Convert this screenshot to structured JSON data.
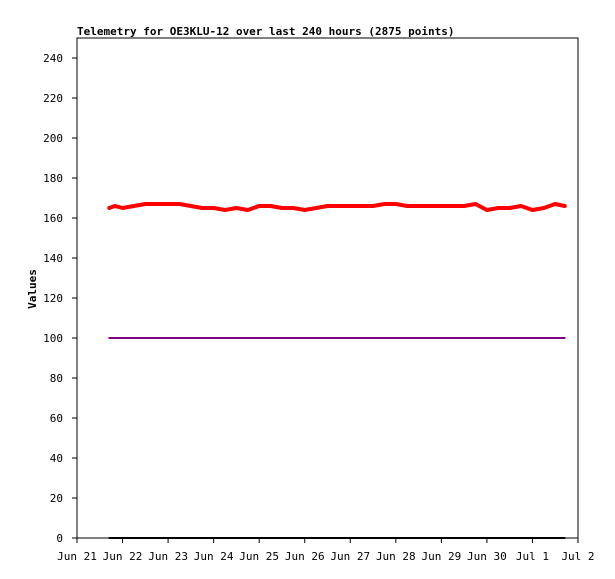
{
  "chart_data": {
    "type": "line",
    "title": "Telemetry for OE3KLU-12 over last 240 hours (2875 points)",
    "xlabel": "",
    "ylabel": "Values",
    "ylim": [
      0,
      250
    ],
    "xlim": [
      "Jun 21",
      "Jul 2"
    ],
    "y_ticks": [
      0,
      20,
      40,
      60,
      80,
      100,
      120,
      140,
      160,
      180,
      200,
      220,
      240
    ],
    "x_tick_labels": [
      "Jun 21",
      "Jun 22",
      "Jun 23",
      "Jun 24",
      "Jun 25",
      "Jun 26",
      "Jun 27",
      "Jun 28",
      "Jun 29",
      "Jun 30",
      "Jul 1",
      "Jul 2"
    ],
    "grid": false,
    "legend": "none",
    "series": [
      {
        "color": "#ff0000",
        "x": [
          "Jun 21 17:00",
          "Jun 21 20:00",
          "Jun 22 00:00",
          "Jun 22 06:00",
          "Jun 22 12:00",
          "Jun 22 18:00",
          "Jun 23 00:00",
          "Jun 23 06:00",
          "Jun 23 12:00",
          "Jun 23 18:00",
          "Jun 24 00:00",
          "Jun 24 06:00",
          "Jun 24 12:00",
          "Jun 24 18:00",
          "Jun 25 00:00",
          "Jun 25 06:00",
          "Jun 25 12:00",
          "Jun 25 18:00",
          "Jun 26 00:00",
          "Jun 26 06:00",
          "Jun 26 12:00",
          "Jun 26 18:00",
          "Jun 27 00:00",
          "Jun 27 06:00",
          "Jun 27 12:00",
          "Jun 27 18:00",
          "Jun 28 00:00",
          "Jun 28 06:00",
          "Jun 28 12:00",
          "Jun 28 18:00",
          "Jun 29 00:00",
          "Jun 29 06:00",
          "Jun 29 12:00",
          "Jun 29 18:00",
          "Jun 30 00:00",
          "Jun 30 06:00",
          "Jun 30 12:00",
          "Jun 30 18:00",
          "Jul 1 00:00",
          "Jul 1 06:00",
          "Jul 1 12:00",
          "Jul 1 17:00"
        ],
        "values": [
          165,
          166,
          165,
          166,
          167,
          167,
          167,
          167,
          166,
          165,
          165,
          164,
          165,
          164,
          166,
          166,
          165,
          165,
          164,
          165,
          166,
          166,
          166,
          166,
          166,
          167,
          167,
          166,
          166,
          166,
          166,
          166,
          166,
          167,
          164,
          165,
          165,
          166,
          164,
          165,
          167,
          166
        ]
      },
      {
        "color": "#800080",
        "x": [
          "Jun 21 17:00",
          "Jul 1 17:00"
        ],
        "values": [
          100,
          100
        ]
      },
      {
        "color": "#000000",
        "x": [
          "Jun 21 17:00",
          "Jul 1 17:00"
        ],
        "values": [
          0,
          0
        ]
      }
    ]
  }
}
